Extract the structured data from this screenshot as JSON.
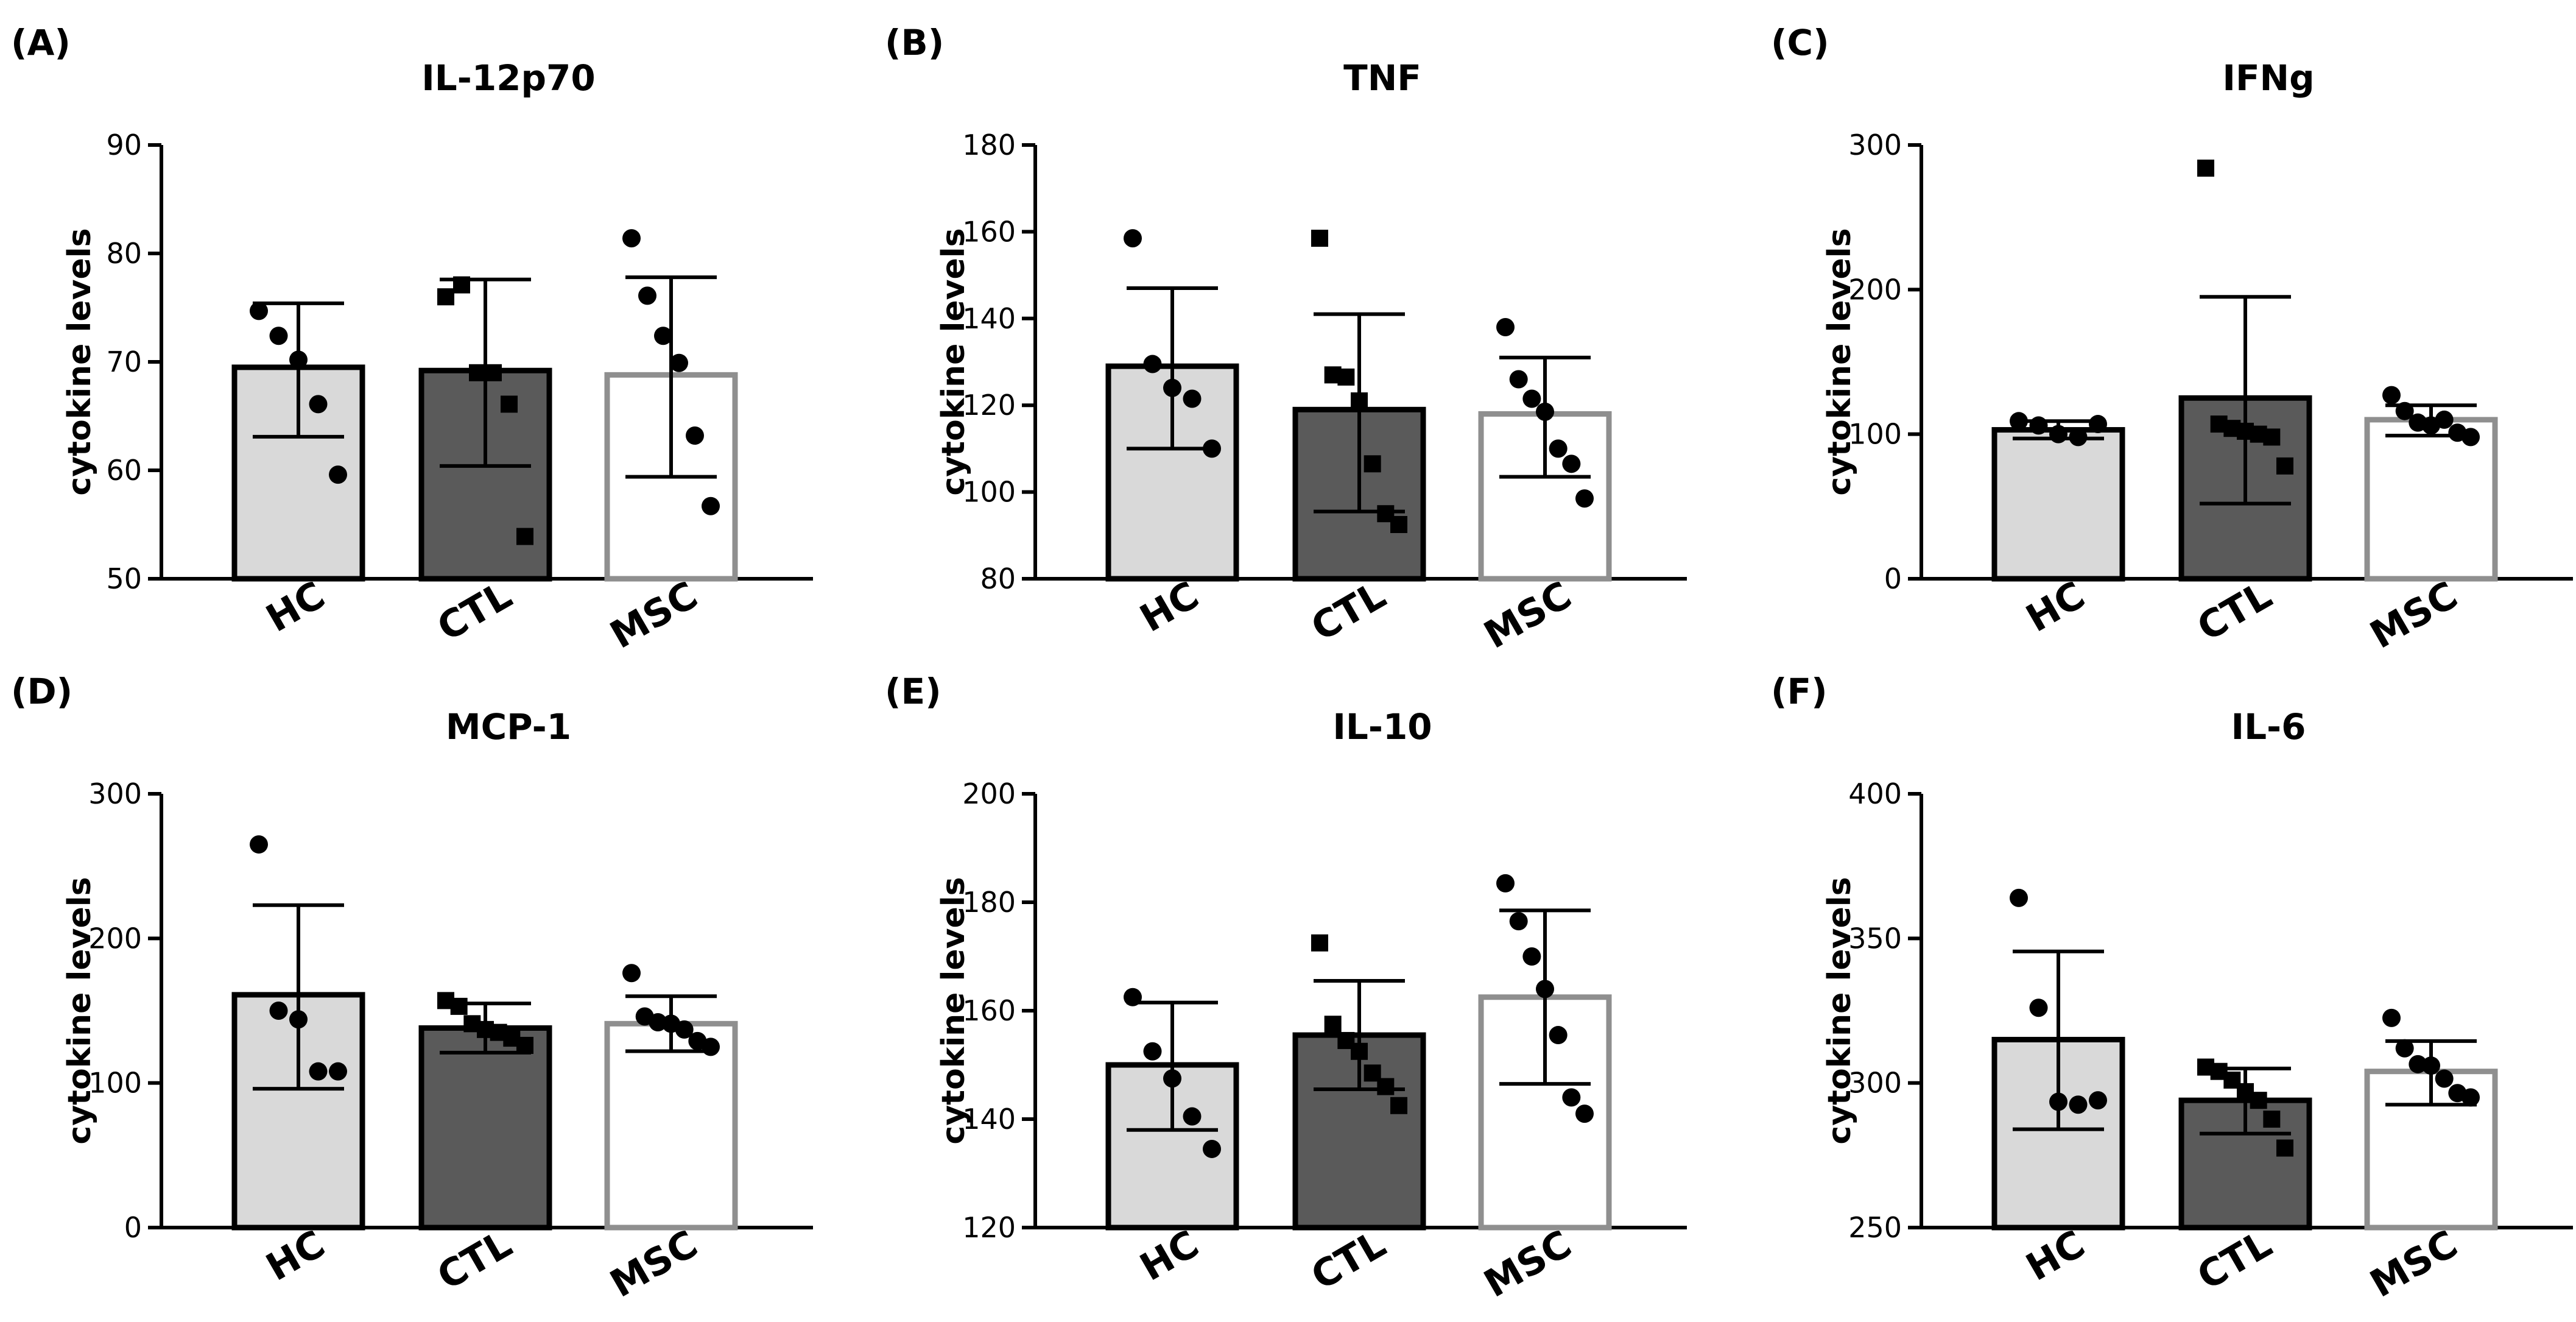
{
  "figure": {
    "colors": {
      "HC": "#d9d9d9",
      "CTL": "#5a5a5a",
      "MSC": "#ffffff",
      "MSC_stroke": "#8f8f8f",
      "stroke": "#000000"
    }
  },
  "chart_data": [
    {
      "type": "bar",
      "panel_label": "(A)",
      "title": "IL-12p70",
      "ylabel": "cytokine levels",
      "categories": [
        "HC",
        "CTL",
        "MSC"
      ],
      "ylim": [
        50,
        90
      ],
      "yticks": [
        50,
        60,
        70,
        80,
        90
      ],
      "bars": [
        69.5,
        69.2,
        68.8
      ],
      "error": [
        [
          63.1,
          75.4
        ],
        [
          60.4,
          77.6
        ],
        [
          59.4,
          77.8
        ]
      ],
      "points": [
        [
          74.7,
          72.4,
          70.2,
          66.1,
          59.6
        ],
        [
          76.0,
          77.1,
          69.0,
          69.0,
          66.1,
          53.9
        ],
        [
          81.4,
          76.1,
          72.4,
          69.9,
          63.2,
          56.7
        ]
      ],
      "markers": [
        "circle",
        "square",
        "circle"
      ]
    },
    {
      "type": "bar",
      "panel_label": "(B)",
      "title": "TNF",
      "ylabel": "cytokine levels",
      "categories": [
        "HC",
        "CTL",
        "MSC"
      ],
      "ylim": [
        80,
        180
      ],
      "yticks": [
        80,
        100,
        120,
        140,
        160,
        180
      ],
      "bars": [
        129,
        119,
        118
      ],
      "error": [
        [
          110,
          147
        ],
        [
          95.5,
          141
        ],
        [
          103.5,
          131
        ]
      ],
      "points": [
        [
          158.5,
          129.5,
          124,
          121.5,
          110
        ],
        [
          158.5,
          127,
          126.5,
          121,
          106.5,
          95,
          92.5
        ],
        [
          138,
          126,
          121.5,
          118.5,
          110,
          106.5,
          98.5
        ]
      ],
      "markers": [
        "circle",
        "square",
        "circle"
      ]
    },
    {
      "type": "bar",
      "panel_label": "(C)",
      "title": "IFNg",
      "ylabel": "cytokine levels",
      "categories": [
        "HC",
        "CTL",
        "MSC"
      ],
      "ylim": [
        0,
        300
      ],
      "yticks": [
        0,
        100,
        200,
        300
      ],
      "bars": [
        103,
        125,
        110
      ],
      "error": [
        [
          97,
          109
        ],
        [
          52,
          195
        ],
        [
          99,
          120
        ]
      ],
      "points": [
        [
          109,
          106,
          100,
          98,
          107
        ],
        [
          284,
          107,
          104,
          102,
          100,
          98,
          78
        ],
        [
          127,
          116,
          108,
          106,
          110,
          101,
          98
        ]
      ],
      "markers": [
        "circle",
        "square",
        "circle"
      ]
    },
    {
      "type": "bar",
      "panel_label": "(D)",
      "title": "MCP-1",
      "ylabel": "cytokine levels",
      "categories": [
        "HC",
        "CTL",
        "MSC"
      ],
      "ylim": [
        0,
        300
      ],
      "yticks": [
        0,
        100,
        200,
        300
      ],
      "bars": [
        161,
        138,
        141
      ],
      "error": [
        [
          96,
          223
        ],
        [
          121,
          155
        ],
        [
          122,
          160
        ]
      ],
      "points": [
        [
          265,
          150,
          144,
          108,
          108
        ],
        [
          157,
          153,
          141,
          137,
          135,
          131,
          126
        ],
        [
          176,
          146,
          142,
          141,
          137,
          129,
          125
        ]
      ],
      "markers": [
        "circle",
        "square",
        "circle"
      ]
    },
    {
      "type": "bar",
      "panel_label": "(E)",
      "title": "IL-10",
      "ylabel": "cytokine levels",
      "categories": [
        "HC",
        "CTL",
        "MSC"
      ],
      "ylim": [
        120,
        200
      ],
      "yticks": [
        120,
        140,
        160,
        180,
        200
      ],
      "bars": [
        150,
        155.5,
        162.5
      ],
      "error": [
        [
          138,
          161.5
        ],
        [
          145.5,
          165.5
        ],
        [
          146.5,
          178.5
        ]
      ],
      "points": [
        [
          162.5,
          152.5,
          147.5,
          140.5,
          134.5
        ],
        [
          172.5,
          157.5,
          154.5,
          152.5,
          148.5,
          146,
          142.5
        ],
        [
          183.5,
          176.5,
          170,
          164,
          155.5,
          144,
          141
        ]
      ],
      "markers": [
        "circle",
        "square",
        "circle"
      ]
    },
    {
      "type": "bar",
      "panel_label": "(F)",
      "title": "IL-6",
      "ylabel": "cytokine levels",
      "categories": [
        "HC",
        "CTL",
        "MSC"
      ],
      "ylim": [
        250,
        400
      ],
      "yticks": [
        250,
        300,
        350,
        400
      ],
      "bars": [
        315,
        294,
        304
      ],
      "error": [
        [
          284,
          345.5
        ],
        [
          282.5,
          305
        ],
        [
          292.5,
          314.5
        ]
      ],
      "points": [
        [
          364,
          326,
          293.5,
          292.5,
          294
        ],
        [
          305.5,
          304,
          301,
          297,
          294,
          287.5,
          277.5
        ],
        [
          322.5,
          312,
          306.5,
          306,
          301.5,
          296.5,
          295
        ]
      ],
      "markers": [
        "circle",
        "square",
        "circle"
      ]
    }
  ]
}
